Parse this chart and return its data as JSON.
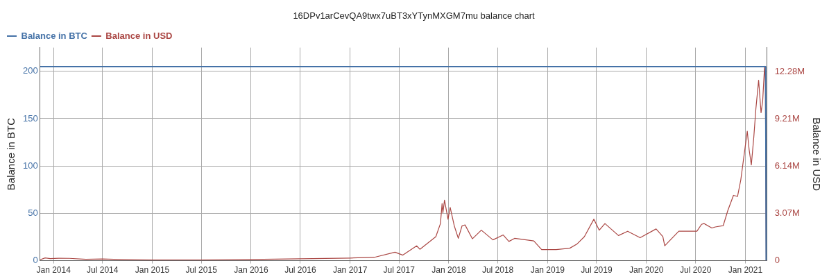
{
  "chart_data": {
    "type": "line",
    "title": "16DPv1arCevQA9twx7uBT3xYTynMXGM7mu balance chart",
    "ylabel": "Balance in BTC",
    "y2label": "Balance in USD",
    "xlim": [
      "2013-11-12",
      "2021-03-22"
    ],
    "xticks": [
      {
        "value": "2014-01-01",
        "label": "Jan 2014"
      },
      {
        "value": "2014-07-01",
        "label": "Jul 2014"
      },
      {
        "value": "2015-01-01",
        "label": "Jan 2015"
      },
      {
        "value": "2015-07-01",
        "label": "Jul 2015"
      },
      {
        "value": "2016-01-01",
        "label": "Jan 2016"
      },
      {
        "value": "2016-07-01",
        "label": "Jul 2016"
      },
      {
        "value": "2017-01-01",
        "label": "Jan 2017"
      },
      {
        "value": "2017-07-01",
        "label": "Jul 2017"
      },
      {
        "value": "2018-01-01",
        "label": "Jan 2018"
      },
      {
        "value": "2018-07-01",
        "label": "Jul 2018"
      },
      {
        "value": "2019-01-01",
        "label": "Jan 2019"
      },
      {
        "value": "2019-07-01",
        "label": "Jul 2019"
      },
      {
        "value": "2020-01-01",
        "label": "Jan 2020"
      },
      {
        "value": "2020-07-01",
        "label": "Jul 2020"
      },
      {
        "value": "2021-01-01",
        "label": "Jan 2021"
      }
    ],
    "ylim": [
      0,
      225
    ],
    "yticks": [
      0,
      50,
      100,
      150,
      200
    ],
    "y2lim": [
      0,
      13830000
    ],
    "y2ticks": [
      {
        "value": 0,
        "label": "0"
      },
      {
        "value": 3070000,
        "label": "3.07M"
      },
      {
        "value": 6140000,
        "label": "6.14M"
      },
      {
        "value": 9210000,
        "label": "9.21M"
      },
      {
        "value": 12280000,
        "label": "12.28M"
      }
    ],
    "grid": true,
    "legend": "top left",
    "marker": "none",
    "line_style": "solid",
    "series": [
      {
        "name": "Balance in BTC",
        "color": "#4572a7",
        "x": [
          "2013-11-12",
          "2021-03-17",
          "2021-03-19"
        ],
        "values": [
          205,
          205,
          0
        ]
      },
      {
        "name": "Balance in USD",
        "color": "#aa4643",
        "axis": "y2",
        "x": [
          "2013-11-12",
          "2013-12-01",
          "2013-12-20",
          "2014-01-20",
          "2014-03-01",
          "2014-05-01",
          "2014-07-01",
          "2014-09-01",
          "2015-01-01",
          "2015-07-01",
          "2016-01-01",
          "2016-07-01",
          "2017-01-01",
          "2017-04-01",
          "2017-06-16",
          "2017-07-15",
          "2017-09-04",
          "2017-09-16",
          "2017-10-20",
          "2017-11-14",
          "2017-12-01",
          "2017-12-07",
          "2017-12-10",
          "2017-12-16",
          "2017-12-29",
          "2018-01-06",
          "2018-01-21",
          "2018-02-05",
          "2018-02-19",
          "2018-03-02",
          "2018-03-29",
          "2018-05-01",
          "2018-06-13",
          "2018-07-21",
          "2018-08-11",
          "2018-09-01",
          "2018-11-11",
          "2018-12-10",
          "2019-02-02",
          "2019-03-24",
          "2019-04-19",
          "2019-05-17",
          "2019-06-21",
          "2019-07-11",
          "2019-08-01",
          "2019-09-20",
          "2019-10-24",
          "2019-12-09",
          "2020-02-06",
          "2020-03-02",
          "2020-03-09",
          "2020-04-30",
          "2020-07-06",
          "2020-07-23",
          "2020-08-01",
          "2020-08-30",
          "2020-09-12",
          "2020-10-11",
          "2020-10-28",
          "2020-11-18",
          "2020-12-03",
          "2020-12-15",
          "2021-01-08",
          "2021-01-15",
          "2021-01-23",
          "2021-02-01",
          "2021-02-09",
          "2021-02-19",
          "2021-02-28",
          "2021-03-06",
          "2021-03-13",
          "2021-03-16",
          "2021-03-19"
        ],
        "values": [
          60000,
          180000,
          130000,
          160000,
          150000,
          90000,
          110000,
          80000,
          50000,
          50000,
          80000,
          120000,
          170000,
          220000,
          550000,
          360000,
          960000,
          740000,
          1210000,
          1560000,
          2410000,
          3700000,
          3110000,
          3930000,
          2690000,
          3460000,
          2270000,
          1450000,
          2270000,
          2320000,
          1420000,
          1980000,
          1350000,
          1670000,
          1250000,
          1450000,
          1280000,
          720000,
          720000,
          810000,
          1070000,
          1560000,
          2690000,
          1980000,
          2410000,
          1630000,
          1910000,
          1490000,
          2060000,
          1560000,
          970000,
          1910000,
          1910000,
          2360000,
          2410000,
          2120000,
          2190000,
          2270000,
          3250000,
          4240000,
          4170000,
          5230000,
          8400000,
          7200000,
          6210000,
          7980000,
          9880000,
          11710000,
          9600000,
          10370000,
          12630000,
          11570000,
          0
        ]
      }
    ]
  }
}
